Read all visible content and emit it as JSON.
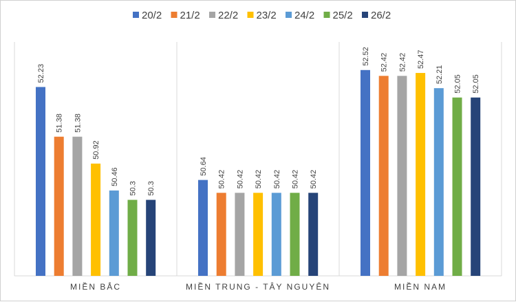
{
  "chart_data": {
    "type": "bar",
    "title": "",
    "xlabel": "",
    "ylabel": "",
    "ylim": [
      49,
      53
    ],
    "grid": false,
    "legend_position": "top",
    "categories": [
      "MIỀN BẮC",
      "MIỀN TRUNG - TÂY NGUYÊN",
      "MIỀN NAM"
    ],
    "series": [
      {
        "name": "20/2",
        "color": "#4472C4",
        "values": [
          52.23,
          50.64,
          52.52
        ]
      },
      {
        "name": "21/2",
        "color": "#ED7D31",
        "values": [
          51.38,
          50.42,
          52.42
        ]
      },
      {
        "name": "22/2",
        "color": "#A5A5A5",
        "values": [
          51.38,
          50.42,
          52.42
        ]
      },
      {
        "name": "23/2",
        "color": "#FFC000",
        "values": [
          50.92,
          50.42,
          52.47
        ]
      },
      {
        "name": "24/2",
        "color": "#5B9BD5",
        "values": [
          50.46,
          50.42,
          52.21
        ]
      },
      {
        "name": "25/2",
        "color": "#70AD47",
        "values": [
          50.3,
          50.42,
          52.05
        ]
      },
      {
        "name": "26/2",
        "color": "#264478",
        "values": [
          50.3,
          50.42,
          52.05
        ]
      }
    ]
  }
}
